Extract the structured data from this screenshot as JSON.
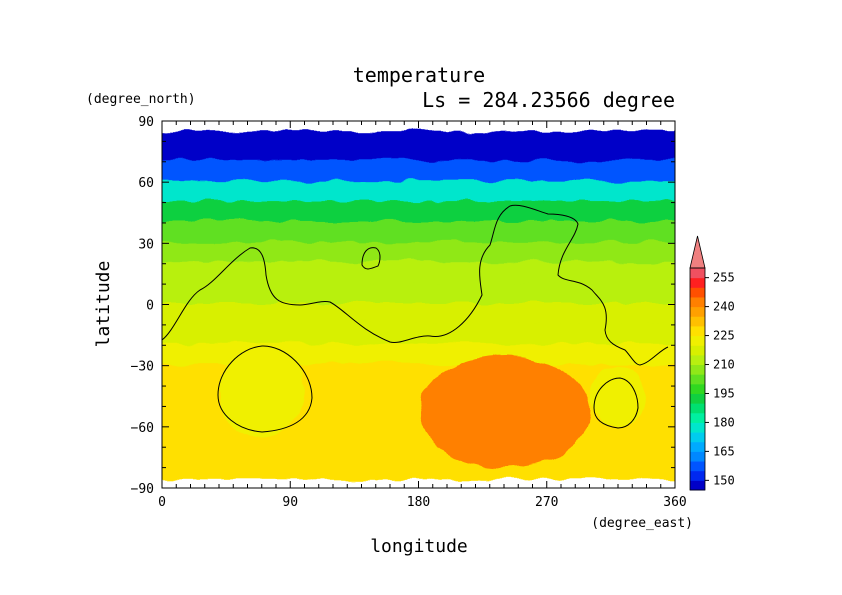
{
  "chart_data": {
    "type": "heatmap",
    "title": "temperature",
    "subtitle": "Ls = 284.23566 degree",
    "xlabel": "longitude",
    "ylabel": "latitude",
    "x_units": "(degree_east)",
    "y_units": "(degree_north)",
    "xlim": [
      0,
      360
    ],
    "ylim": [
      -90,
      90
    ],
    "x_ticks": [
      "0",
      "90",
      "180",
      "270",
      "360"
    ],
    "y_ticks": [
      "90",
      "60",
      "30",
      "0",
      "−30",
      "−60",
      "−90"
    ],
    "colorbar": {
      "labels": [
        "255",
        "240",
        "225",
        "210",
        "195",
        "180",
        "165",
        "150"
      ],
      "levels": [
        145,
        150,
        155,
        160,
        165,
        170,
        175,
        180,
        185,
        190,
        195,
        200,
        205,
        210,
        215,
        220,
        225,
        230,
        235,
        240,
        245,
        250,
        255,
        260
      ],
      "colors": [
        "#0000c8",
        "#0028f0",
        "#0055ff",
        "#0088ff",
        "#00aaff",
        "#00ccee",
        "#00e6cc",
        "#00f0a0",
        "#00e070",
        "#10d040",
        "#30d820",
        "#60e020",
        "#90e818",
        "#b8f010",
        "#d8f000",
        "#f0f000",
        "#ffe000",
        "#ffc000",
        "#ffa000",
        "#ff8000",
        "#ff5000",
        "#ff2020",
        "#f05060",
        "#f08080"
      ],
      "extend": "max"
    },
    "temperature_by_latitude": [
      {
        "lat": 85,
        "value": 146
      },
      {
        "lat": 75,
        "value": 147
      },
      {
        "lat": 65,
        "value": 156
      },
      {
        "lat": 55,
        "value": 177
      },
      {
        "lat": 45,
        "value": 192
      },
      {
        "lat": 35,
        "value": 201
      },
      {
        "lat": 25,
        "value": 207
      },
      {
        "lat": 15,
        "value": 211
      },
      {
        "lat": 5,
        "value": 213
      },
      {
        "lat": -5,
        "value": 215
      },
      {
        "lat": -15,
        "value": 218
      },
      {
        "lat": -25,
        "value": 224
      },
      {
        "lat": -35,
        "value": 227
      },
      {
        "lat": -45,
        "value": 229
      },
      {
        "lat": -55,
        "value": 229
      },
      {
        "lat": -65,
        "value": 229
      },
      {
        "lat": -75,
        "value": 229
      },
      {
        "lat": -85,
        "value": 228
      }
    ],
    "data_lat_range": [
      -85,
      85
    ],
    "hot_region": {
      "lon": [
        180,
        300
      ],
      "lat": [
        -80,
        -25
      ],
      "value": 241
    },
    "cool_patches": [
      {
        "lon": [
          40,
          100
        ],
        "lat": [
          -65,
          -20
        ],
        "value": 224
      },
      {
        "lon": [
          300,
          340
        ],
        "lat": [
          -60,
          -30
        ],
        "value": 224
      }
    ]
  }
}
